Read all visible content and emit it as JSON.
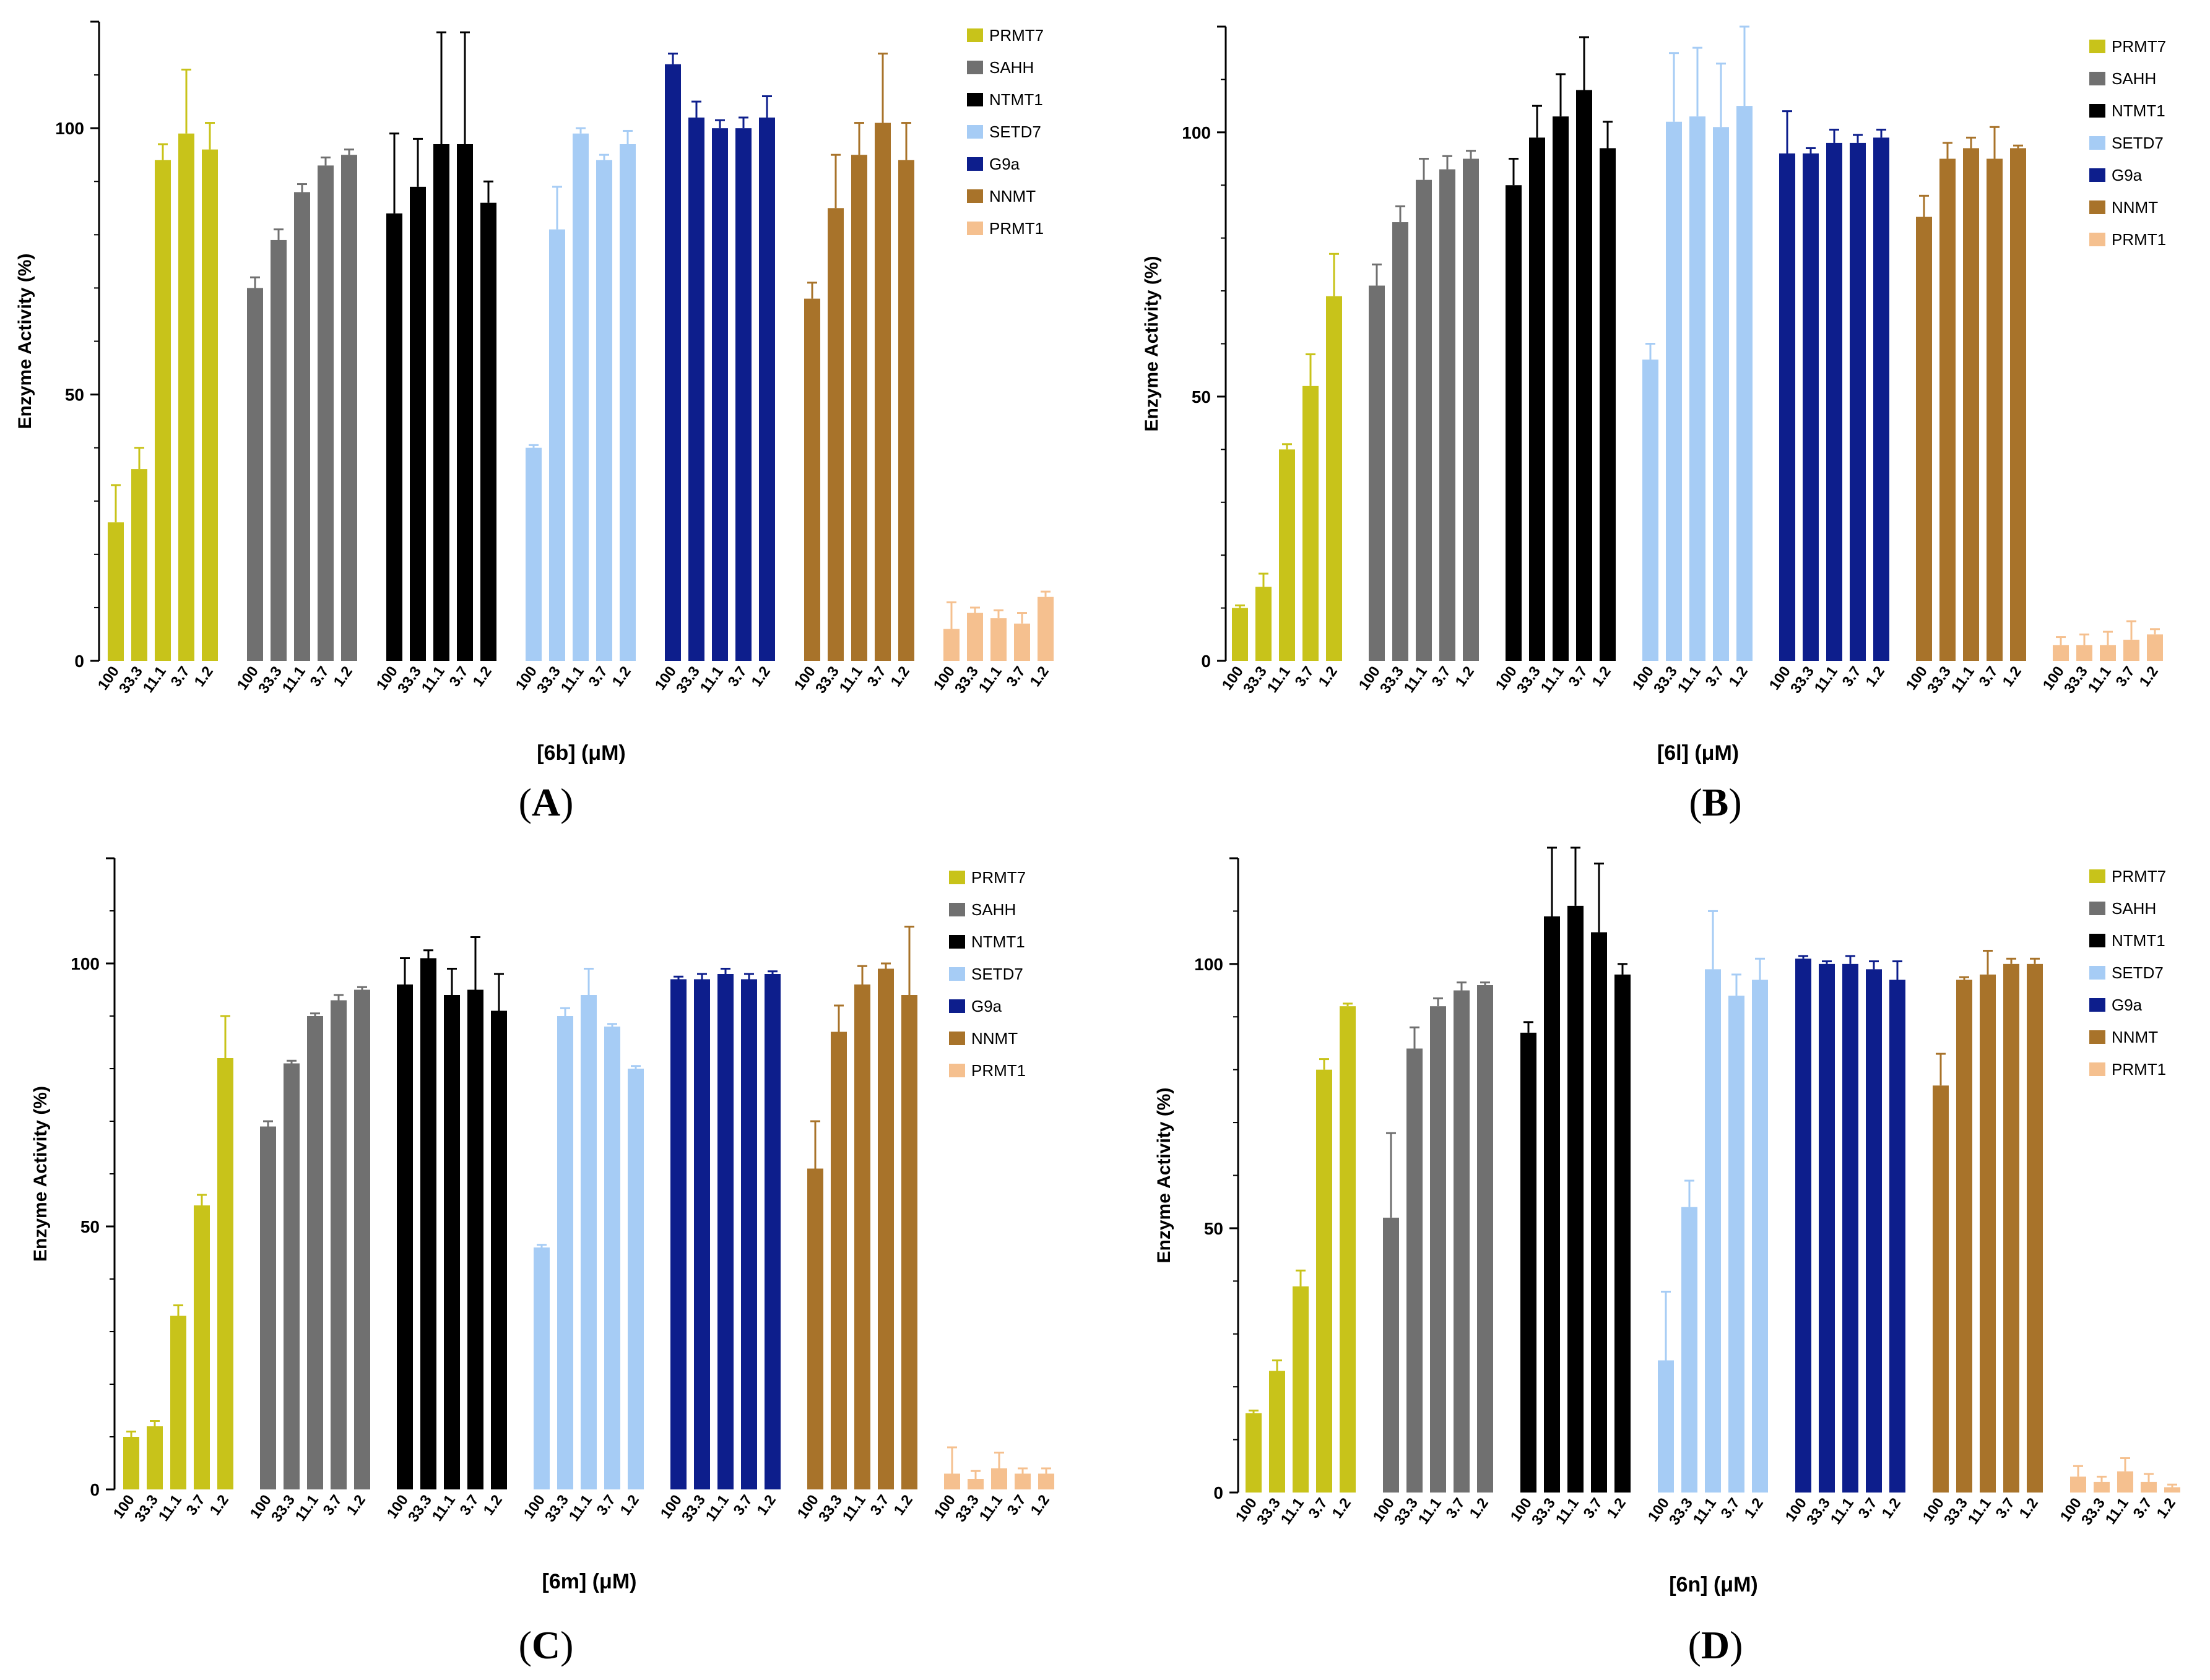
{
  "figure": {
    "enzymes": [
      "PRMT7",
      "SAHH",
      "NTMT1",
      "SETD7",
      "G9a",
      "NNMT",
      "PRMT1"
    ],
    "colors": [
      "#c8c31a",
      "#707070",
      "#000000",
      "#a6ccf5",
      "#0d1e8c",
      "#a8732a",
      "#f5c08f"
    ],
    "concentrations": [
      "100",
      "33.3",
      "11.1",
      "3.7",
      "1.2"
    ]
  },
  "panels": [
    {
      "label_open": "(",
      "label_letter": "A",
      "label_close": ")",
      "chart_data": {
        "type": "bar",
        "title": "",
        "xlabel": "[6b] (μM)",
        "ylabel": "Enzyme Activity (%)",
        "ylim": [
          0,
          120
        ],
        "yticks": [
          "0",
          "50",
          "100"
        ],
        "legend": "top-right",
        "series": [
          {
            "name": "PRMT7",
            "values": [
              26,
              36,
              94,
              99,
              96
            ],
            "errors": [
              7,
              4,
              3,
              12,
              5
            ]
          },
          {
            "name": "SAHH",
            "values": [
              70,
              79,
              88,
              93,
              95
            ],
            "errors": [
              2,
              2,
              1.5,
              1.5,
              1
            ]
          },
          {
            "name": "NTMT1",
            "values": [
              84,
              89,
              97,
              97,
              86
            ],
            "errors": [
              15,
              9,
              21,
              21,
              4
            ]
          },
          {
            "name": "SETD7",
            "values": [
              40,
              81,
              99,
              94,
              97
            ],
            "errors": [
              0.5,
              8,
              1,
              1,
              2.5
            ]
          },
          {
            "name": "G9a",
            "values": [
              112,
              102,
              100,
              100,
              102
            ],
            "errors": [
              2,
              3,
              1.5,
              2,
              4
            ]
          },
          {
            "name": "NNMT",
            "values": [
              68,
              85,
              95,
              101,
              94
            ],
            "errors": [
              3,
              10,
              6,
              13,
              7
            ]
          },
          {
            "name": "PRMT1",
            "values": [
              6,
              9,
              8,
              7,
              12
            ],
            "errors": [
              5,
              1,
              1.5,
              2,
              1
            ]
          }
        ]
      }
    },
    {
      "label_open": "(",
      "label_letter": "B",
      "label_close": ")",
      "chart_data": {
        "type": "bar",
        "title": "",
        "xlabel": "[6l] (μM)",
        "ylabel": "Enzyme Activity (%)",
        "ylim": [
          0,
          120
        ],
        "yticks": [
          "0",
          "50",
          "100"
        ],
        "legend": "top-right",
        "series": [
          {
            "name": "PRMT7",
            "values": [
              10,
              14,
              40,
              52,
              69
            ],
            "errors": [
              0.5,
              2.5,
              1,
              6,
              8
            ]
          },
          {
            "name": "SAHH",
            "values": [
              71,
              83,
              91,
              93,
              95
            ],
            "errors": [
              4,
              3,
              4,
              2.5,
              1.5
            ]
          },
          {
            "name": "NTMT1",
            "values": [
              90,
              99,
              103,
              108,
              97
            ],
            "errors": [
              5,
              6,
              8,
              10,
              5
            ]
          },
          {
            "name": "SETD7",
            "values": [
              57,
              102,
              103,
              101,
              105
            ],
            "errors": [
              3,
              13,
              13,
              12,
              15
            ]
          },
          {
            "name": "G9a",
            "values": [
              96,
              96,
              98,
              98,
              99
            ],
            "errors": [
              8,
              1,
              2.5,
              1.5,
              1.5
            ]
          },
          {
            "name": "NNMT",
            "values": [
              84,
              95,
              97,
              95,
              97
            ],
            "errors": [
              4,
              3,
              2,
              6,
              0.5
            ]
          },
          {
            "name": "PRMT1",
            "values": [
              3,
              3,
              3,
              4,
              5
            ],
            "errors": [
              1.5,
              2,
              2.5,
              3.5,
              1
            ]
          }
        ]
      }
    },
    {
      "label_open": "(",
      "label_letter": "C",
      "label_close": ")",
      "chart_data": {
        "type": "bar",
        "title": "",
        "xlabel": "[6m] (μM)",
        "ylabel": "Enzyme Activity (%)",
        "ylim": [
          0,
          120
        ],
        "yticks": [
          "0",
          "50",
          "100"
        ],
        "legend": "top-right",
        "series": [
          {
            "name": "PRMT7",
            "values": [
              10,
              12,
              33,
              54,
              82
            ],
            "errors": [
              1,
              1,
              2,
              2,
              8
            ]
          },
          {
            "name": "SAHH",
            "values": [
              69,
              81,
              90,
              93,
              95
            ],
            "errors": [
              1,
              0.5,
              0.5,
              1,
              0.5
            ]
          },
          {
            "name": "NTMT1",
            "values": [
              96,
              101,
              94,
              95,
              91
            ],
            "errors": [
              5,
              1.5,
              5,
              10,
              7
            ]
          },
          {
            "name": "SETD7",
            "values": [
              46,
              90,
              94,
              88,
              80
            ],
            "errors": [
              0.5,
              1.5,
              5,
              0.5,
              0.5
            ]
          },
          {
            "name": "G9a",
            "values": [
              97,
              97,
              98,
              97,
              98
            ],
            "errors": [
              0.5,
              1,
              1,
              1,
              0.5
            ]
          },
          {
            "name": "NNMT",
            "values": [
              61,
              87,
              96,
              99,
              94
            ],
            "errors": [
              9,
              5,
              3.5,
              1,
              13
            ]
          },
          {
            "name": "PRMT1",
            "values": [
              3,
              2,
              4,
              3,
              3
            ],
            "errors": [
              5,
              1.5,
              3,
              1,
              1
            ]
          }
        ]
      }
    },
    {
      "label_open": "(",
      "label_letter": "D",
      "label_close": ")",
      "chart_data": {
        "type": "bar",
        "title": "",
        "xlabel": "[6n] (μM)",
        "ylabel": "Enzyme Activity (%)",
        "ylim": [
          0,
          120
        ],
        "yticks": [
          "0",
          "50",
          "100"
        ],
        "legend": "top-right",
        "series": [
          {
            "name": "PRMT7",
            "values": [
              15,
              23,
              39,
              80,
              92
            ],
            "errors": [
              0.5,
              2,
              3,
              2,
              0.5
            ]
          },
          {
            "name": "SAHH",
            "values": [
              52,
              84,
              92,
              95,
              96
            ],
            "errors": [
              16,
              4,
              1.5,
              1.5,
              0.5
            ]
          },
          {
            "name": "NTMT1",
            "values": [
              87,
              109,
              111,
              106,
              98
            ],
            "errors": [
              2,
              14,
              12,
              13,
              2
            ]
          },
          {
            "name": "SETD7",
            "values": [
              25,
              54,
              99,
              94,
              97
            ],
            "errors": [
              13,
              5,
              11,
              4,
              4
            ]
          },
          {
            "name": "G9a",
            "values": [
              101,
              100,
              100,
              99,
              97
            ],
            "errors": [
              0.5,
              0.5,
              1.5,
              1.5,
              3.5
            ]
          },
          {
            "name": "NNMT",
            "values": [
              77,
              97,
              98,
              100,
              100
            ],
            "errors": [
              6,
              0.5,
              4.5,
              1,
              1
            ]
          },
          {
            "name": "PRMT1",
            "values": [
              3,
              2,
              4,
              2,
              1
            ],
            "errors": [
              2,
              1,
              2.5,
              1.5,
              0.5
            ]
          }
        ]
      }
    }
  ]
}
